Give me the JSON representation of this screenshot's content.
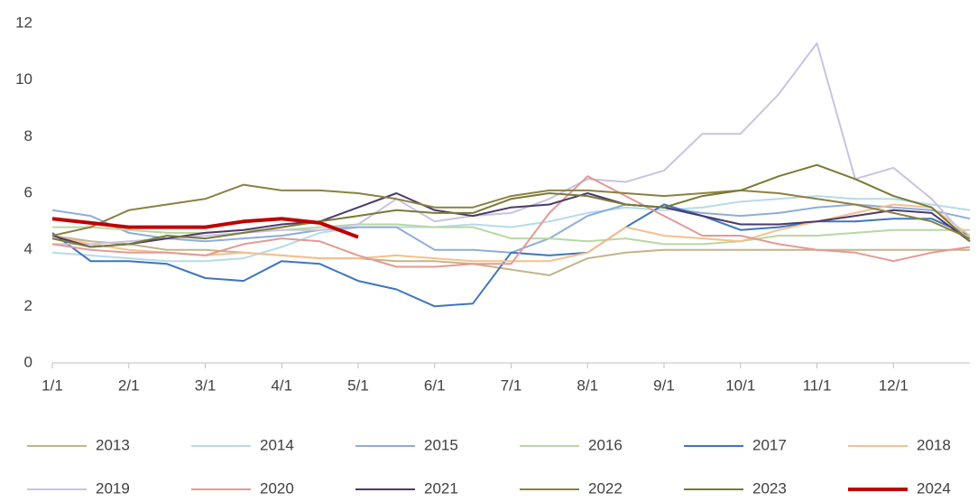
{
  "chart_data": {
    "type": "line",
    "categories": [
      "1/1",
      null,
      "2/1",
      null,
      "3/1",
      null,
      "4/1",
      null,
      "5/1",
      null,
      "6/1",
      null,
      "7/1",
      null,
      "8/1",
      null,
      "9/1",
      null,
      "10/1",
      null,
      "11/1",
      null,
      "12/1",
      null,
      null
    ],
    "ylim": [
      0,
      12
    ],
    "yticks": [
      0,
      2,
      4,
      6,
      8,
      10,
      12
    ],
    "grid": false,
    "legend": "bottom",
    "series": [
      {
        "name": "2013",
        "color": "#c4b48a",
        "values": [
          4.5,
          4.3,
          4.2,
          4.0,
          4.0,
          3.9,
          3.8,
          3.7,
          3.7,
          3.6,
          3.6,
          3.5,
          3.3,
          3.1,
          3.7,
          3.9,
          4.0,
          4.0,
          4.0,
          4.0,
          4.0,
          4.0,
          4.0,
          4.0,
          4.0
        ]
      },
      {
        "name": "2014",
        "color": "#b6dbe9",
        "values": [
          3.9,
          3.8,
          3.7,
          3.6,
          3.6,
          3.7,
          4.1,
          4.6,
          4.8,
          4.8,
          4.8,
          4.9,
          4.8,
          5.0,
          5.3,
          5.5,
          5.4,
          5.5,
          5.7,
          5.8,
          5.9,
          5.8,
          5.8,
          5.6,
          5.4
        ]
      },
      {
        "name": "2015",
        "color": "#8eadd8",
        "values": [
          5.4,
          5.2,
          4.6,
          4.4,
          4.3,
          4.4,
          4.5,
          4.7,
          4.8,
          4.8,
          4.0,
          4.0,
          3.9,
          4.4,
          5.2,
          5.6,
          5.5,
          5.3,
          5.2,
          5.3,
          5.5,
          5.6,
          5.5,
          5.4,
          5.1
        ]
      },
      {
        "name": "2016",
        "color": "#b7d8a2",
        "values": [
          4.8,
          4.8,
          4.7,
          4.6,
          4.6,
          4.7,
          4.7,
          4.8,
          4.9,
          4.9,
          4.8,
          4.8,
          4.4,
          4.4,
          4.3,
          4.4,
          4.2,
          4.2,
          4.3,
          4.5,
          4.5,
          4.6,
          4.7,
          4.7,
          4.7
        ]
      },
      {
        "name": "2017",
        "color": "#3d76bd",
        "values": [
          4.6,
          3.6,
          3.6,
          3.5,
          3.0,
          2.9,
          3.6,
          3.5,
          2.9,
          2.6,
          2.0,
          2.1,
          3.9,
          3.8,
          3.9,
          4.8,
          5.6,
          5.2,
          4.7,
          4.8,
          5.0,
          5.0,
          5.1,
          5.1,
          4.5
        ]
      },
      {
        "name": "2018",
        "color": "#f5c08c",
        "values": [
          4.5,
          4.2,
          4.0,
          3.9,
          3.8,
          3.9,
          3.8,
          3.7,
          3.7,
          3.8,
          3.7,
          3.6,
          3.6,
          3.6,
          3.9,
          4.8,
          4.5,
          4.4,
          4.3,
          4.7,
          5.0,
          5.3,
          5.6,
          5.5,
          4.5
        ]
      },
      {
        "name": "2019",
        "color": "#c9c3e3",
        "values": [
          4.2,
          4.2,
          4.3,
          4.4,
          4.5,
          4.6,
          4.7,
          4.7,
          4.9,
          5.8,
          5.0,
          5.2,
          5.3,
          5.8,
          6.5,
          6.4,
          6.8,
          8.1,
          8.1,
          9.5,
          11.3,
          6.5,
          6.9,
          5.8,
          4.3
        ]
      },
      {
        "name": "2020",
        "color": "#e39a94",
        "values": [
          4.2,
          4.0,
          3.9,
          3.9,
          3.8,
          4.2,
          4.4,
          4.3,
          3.8,
          3.4,
          3.4,
          3.5,
          3.5,
          5.3,
          6.6,
          5.9,
          5.2,
          4.5,
          4.5,
          4.2,
          4.0,
          3.9,
          3.6,
          3.9,
          4.1
        ]
      },
      {
        "name": "2021",
        "color": "#4d3a6b",
        "values": [
          4.5,
          4.1,
          4.2,
          4.4,
          4.6,
          4.7,
          4.9,
          5.0,
          5.5,
          6.0,
          5.4,
          5.2,
          5.5,
          5.6,
          6.0,
          5.6,
          5.5,
          5.2,
          4.9,
          4.9,
          5.0,
          5.2,
          5.4,
          5.3,
          4.3
        ]
      },
      {
        "name": "2022",
        "color": "#8c8142",
        "values": [
          4.5,
          4.8,
          5.4,
          5.6,
          5.8,
          6.3,
          6.1,
          6.1,
          6.0,
          5.8,
          5.5,
          5.5,
          5.9,
          6.1,
          6.1,
          6.0,
          5.9,
          6.0,
          6.1,
          6.0,
          5.8,
          5.6,
          5.3,
          5.0,
          4.4
        ]
      },
      {
        "name": "2023",
        "color": "#7a7a35",
        "values": [
          4.4,
          4.1,
          4.2,
          4.5,
          4.4,
          4.6,
          4.8,
          5.0,
          5.2,
          5.4,
          5.3,
          5.3,
          5.8,
          6.0,
          5.9,
          5.6,
          5.5,
          5.9,
          6.1,
          6.6,
          7.0,
          6.5,
          5.9,
          5.5,
          4.3
        ]
      },
      {
        "name": "2024",
        "color": "#c00000",
        "width": 4,
        "values": [
          5.1,
          4.95,
          4.8,
          4.8,
          4.8,
          5.0,
          5.1,
          4.95,
          4.45,
          null,
          null,
          null,
          null,
          null,
          null,
          null,
          null,
          null,
          null,
          null,
          null,
          null,
          null,
          null,
          null
        ]
      }
    ]
  }
}
